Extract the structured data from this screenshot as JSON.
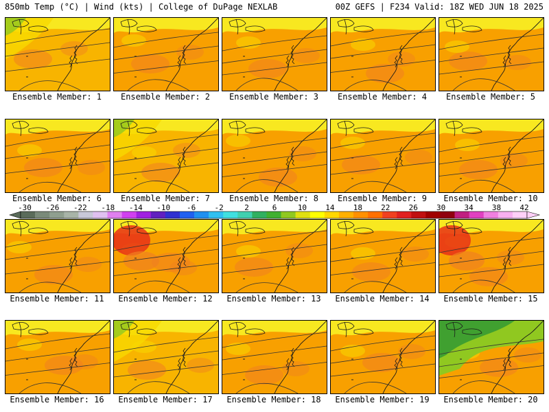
{
  "header": {
    "left": "850mb Temp (°C) | Wind (kts) | College of DuPage NEXLAB",
    "right": "00Z GEFS | F234 Valid: 18Z WED JUN 18 2025"
  },
  "panels": [
    {
      "label": "Ensemble Member: 1",
      "temp_shade": "orange-yellow"
    },
    {
      "label": "Ensemble Member: 2",
      "temp_shade": "orange"
    },
    {
      "label": "Ensemble Member: 3",
      "temp_shade": "orange"
    },
    {
      "label": "Ensemble Member: 4",
      "temp_shade": "orange"
    },
    {
      "label": "Ensemble Member: 5",
      "temp_shade": "orange"
    },
    {
      "label": "Ensemble Member: 6",
      "temp_shade": "orange"
    },
    {
      "label": "Ensemble Member: 7",
      "temp_shade": "orange-yellow"
    },
    {
      "label": "Ensemble Member: 8",
      "temp_shade": "orange"
    },
    {
      "label": "Ensemble Member: 9",
      "temp_shade": "orange"
    },
    {
      "label": "Ensemble Member: 10",
      "temp_shade": "orange"
    },
    {
      "label": "Ensemble Member: 11",
      "temp_shade": "orange"
    },
    {
      "label": "Ensemble Member: 12",
      "temp_shade": "orange-red"
    },
    {
      "label": "Ensemble Member: 13",
      "temp_shade": "orange"
    },
    {
      "label": "Ensemble Member: 14",
      "temp_shade": "orange"
    },
    {
      "label": "Ensemble Member: 15",
      "temp_shade": "orange-red"
    },
    {
      "label": "Ensemble Member: 16",
      "temp_shade": "orange"
    },
    {
      "label": "Ensemble Member: 17",
      "temp_shade": "orange-yellow"
    },
    {
      "label": "Ensemble Member: 18",
      "temp_shade": "orange"
    },
    {
      "label": "Ensemble Member: 19",
      "temp_shade": "orange"
    },
    {
      "label": "Ensemble Member: 20",
      "temp_shade": "green-orange"
    }
  ],
  "colorbar": {
    "labels": [
      "-30",
      "-26",
      "-22",
      "-18",
      "-14",
      "-10",
      "-6",
      "-2",
      "2",
      "6",
      "10",
      "14",
      "18",
      "22",
      "26",
      "30",
      "34",
      "38",
      "42"
    ],
    "colors": [
      "#5a6b5a",
      "#7a8a7a",
      "#8f9f8f",
      "#a8b4a8",
      "#c8c8d8",
      "#e0c0f0",
      "#e080f0",
      "#d040f0",
      "#a020e0",
      "#6020c0",
      "#3030d0",
      "#2060f0",
      "#2090f0",
      "#30c0f0",
      "#40e0e0",
      "#40d0b0",
      "#30b060",
      "#40b030",
      "#90c820",
      "#e0e010",
      "#ffff00",
      "#ffd700",
      "#ffb000",
      "#ff9000",
      "#ff7000",
      "#f04020",
      "#e02020",
      "#c01010",
      "#a00000",
      "#900010",
      "#c02080",
      "#e040c0",
      "#f080e0",
      "#f8b0f0",
      "#ffd0f8"
    ]
  },
  "palette": {
    "yellow": "#f8d800",
    "lightyellow": "#f8e820",
    "orange": "#f8a000",
    "orangemid": "#f8b400",
    "deeporange": "#f08020",
    "red": "#e83018",
    "green": "#40a030",
    "lightgreen": "#90c820"
  }
}
